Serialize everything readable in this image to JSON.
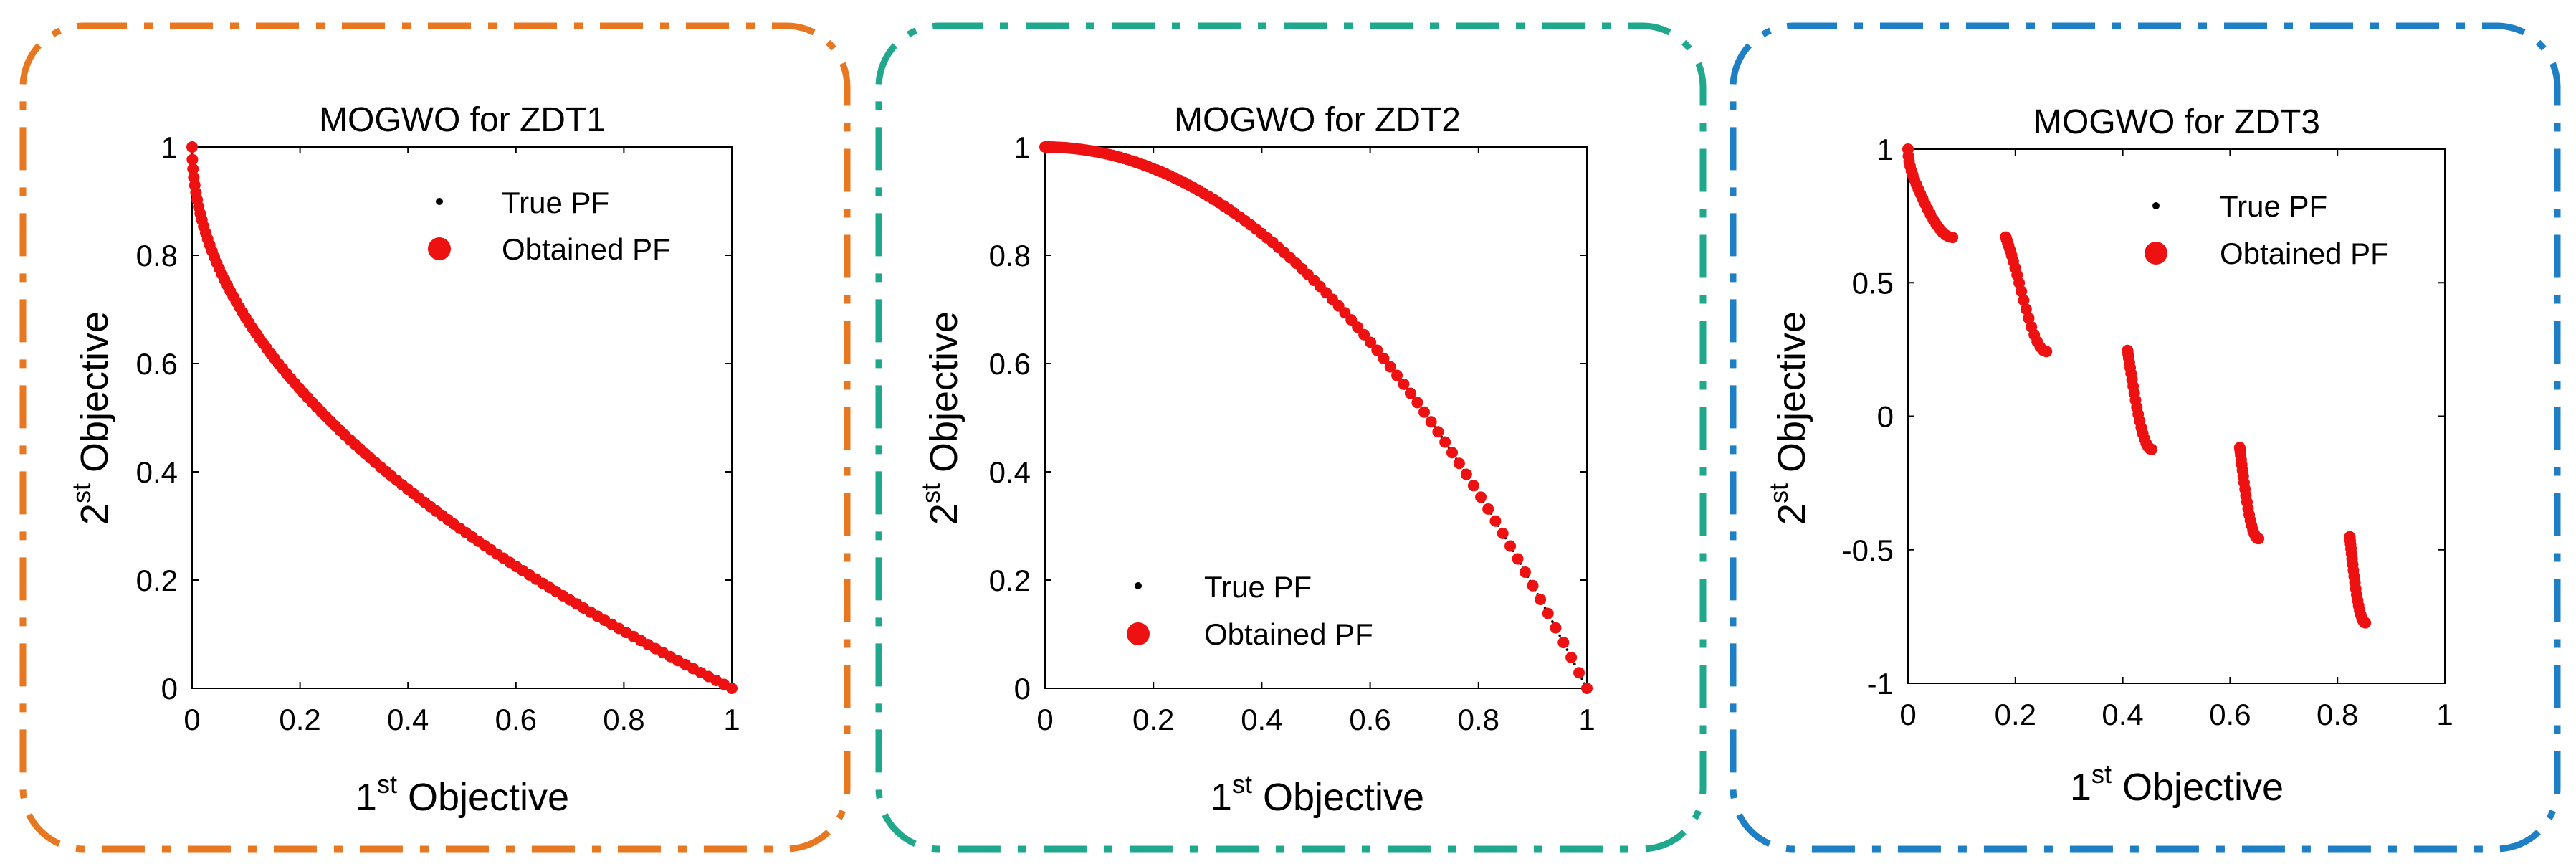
{
  "figure": {
    "panels": [
      {
        "frame_color": "#E87722"
      },
      {
        "frame_color": "#1FA88C"
      },
      {
        "frame_color": "#1F7FC4"
      }
    ],
    "marker_color": "#EE1111",
    "true_pf_color": "#000000"
  },
  "chart_data": [
    {
      "type": "scatter",
      "title": "MOGWO for ZDT1",
      "xlabel_sup": "st",
      "xlabel_num": "1",
      "xlabel_rest": " Objective",
      "ylabel_sup": "st",
      "ylabel_num": "2",
      "ylabel_rest": " Objective",
      "xlim": [
        0,
        1
      ],
      "ylim": [
        0,
        1
      ],
      "xticks": [
        0,
        0.2,
        0.4,
        0.6,
        0.8,
        1
      ],
      "xtick_labels": [
        "0",
        "0.2",
        "0.4",
        "0.6",
        "0.8",
        "1"
      ],
      "yticks": [
        0,
        0.2,
        0.4,
        0.6,
        0.8,
        1
      ],
      "ytick_labels": [
        "0",
        "0.2",
        "0.4",
        "0.6",
        "0.8",
        "1"
      ],
      "legend": {
        "position": "top-right",
        "entries": [
          "True PF",
          "Obtained PF"
        ]
      },
      "true_pf": {
        "function": "zdt1",
        "x_range": [
          0,
          1
        ]
      },
      "obtained_pf": {
        "function": "zdt1",
        "x_ranges": [
          [
            0,
            1
          ]
        ]
      }
    },
    {
      "type": "scatter",
      "title": "MOGWO for ZDT2",
      "xlabel_sup": "st",
      "xlabel_num": "1",
      "xlabel_rest": " Objective",
      "ylabel_sup": "st",
      "ylabel_num": "2",
      "ylabel_rest": " Objective",
      "xlim": [
        0,
        1
      ],
      "ylim": [
        0,
        1
      ],
      "xticks": [
        0,
        0.2,
        0.4,
        0.6,
        0.8,
        1
      ],
      "xtick_labels": [
        "0",
        "0.2",
        "0.4",
        "0.6",
        "0.8",
        "1"
      ],
      "yticks": [
        0,
        0.2,
        0.4,
        0.6,
        0.8,
        1
      ],
      "ytick_labels": [
        "0",
        "0.2",
        "0.4",
        "0.6",
        "0.8",
        "1"
      ],
      "legend": {
        "position": "bottom-left",
        "entries": [
          "True PF",
          "Obtained PF"
        ]
      },
      "true_pf": {
        "function": "zdt2",
        "x_range": [
          0,
          1
        ]
      },
      "obtained_pf": {
        "function": "zdt2",
        "x_ranges": [
          [
            0,
            1
          ]
        ]
      }
    },
    {
      "type": "scatter",
      "title": "MOGWO for ZDT3",
      "xlabel_sup": "st",
      "xlabel_num": "1",
      "xlabel_rest": " Objective",
      "ylabel_sup": "st",
      "ylabel_num": "2",
      "ylabel_rest": " Objective",
      "xlim": [
        0,
        1
      ],
      "ylim": [
        -1,
        1
      ],
      "xticks": [
        0,
        0.2,
        0.4,
        0.6,
        0.8,
        1
      ],
      "xtick_labels": [
        "0",
        "0.2",
        "0.4",
        "0.6",
        "0.8",
        "1"
      ],
      "yticks": [
        -1,
        -0.5,
        0,
        0.5,
        1
      ],
      "ytick_labels": [
        "-1",
        "-0.5",
        "0",
        "0.5",
        "1"
      ],
      "legend": {
        "position": "top-center",
        "entries": [
          "True PF",
          "Obtained PF"
        ]
      },
      "true_pf": {
        "function": "zdt3",
        "x_ranges": [
          [
            0,
            0.083
          ],
          [
            0.182,
            0.258
          ],
          [
            0.409,
            0.454
          ],
          [
            0.618,
            0.653
          ],
          [
            0.823,
            0.852
          ]
        ]
      },
      "obtained_pf": {
        "function": "zdt3",
        "x_ranges": [
          [
            0,
            0.083
          ],
          [
            0.182,
            0.258
          ],
          [
            0.409,
            0.454
          ],
          [
            0.618,
            0.653
          ],
          [
            0.823,
            0.852
          ]
        ]
      }
    }
  ]
}
